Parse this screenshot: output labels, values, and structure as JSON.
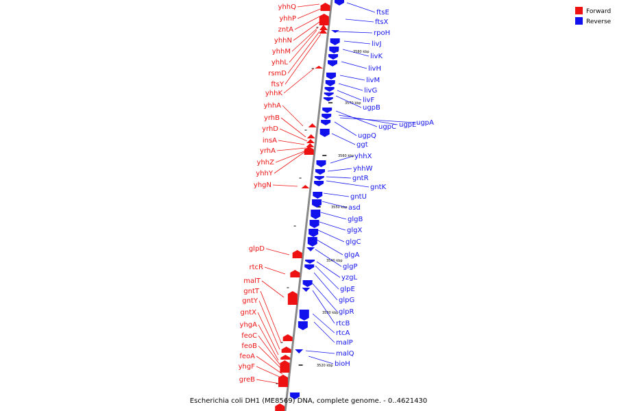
{
  "caption": "Escherichia coli DH1 (ME8569) DNA, complete genome. - 0..4621430",
  "legend": [
    {
      "label": "Forward",
      "color": "#ee1111"
    },
    {
      "label": "Reverse",
      "color": "#1111ee"
    }
  ],
  "ticks": [
    "3580 kbp",
    "3570 kbp",
    "3560 kbp",
    "3550 kbp",
    "3540 kbp",
    "3530 kbp",
    "3520 kbp"
  ],
  "genes": {
    "forward": [
      "yhhQ",
      "yhhP",
      "zntA",
      "yhhN",
      "yhhM",
      "yhhL",
      "rsmD",
      "ftsY",
      "yhhK",
      "yhhA",
      "yrhB",
      "yrhD",
      "insA",
      "yrhA",
      "yhhZ",
      "yhhY",
      "yhgN",
      "glpD",
      "rtcR",
      "malT",
      "gntT",
      "gntY",
      "gntX",
      "yhgA",
      "feoC",
      "feoB",
      "feoA",
      "yhgF",
      "greB"
    ],
    "reverse": [
      "ftsE",
      "ftsX",
      "rpoH",
      "livJ",
      "livK",
      "livH",
      "livM",
      "livG",
      "livF",
      "ugpB",
      "ugpC",
      "ugpE",
      "ugpA",
      "ugpQ",
      "ggt",
      "yhhX",
      "yhhW",
      "gntR",
      "gntK",
      "gntU",
      "asd",
      "glgB",
      "glgX",
      "glgC",
      "glgA",
      "glgP",
      "yzgL",
      "glpE",
      "glpG",
      "glpR",
      "rtcB",
      "rtcA",
      "malP",
      "malQ",
      "bioH"
    ]
  }
}
